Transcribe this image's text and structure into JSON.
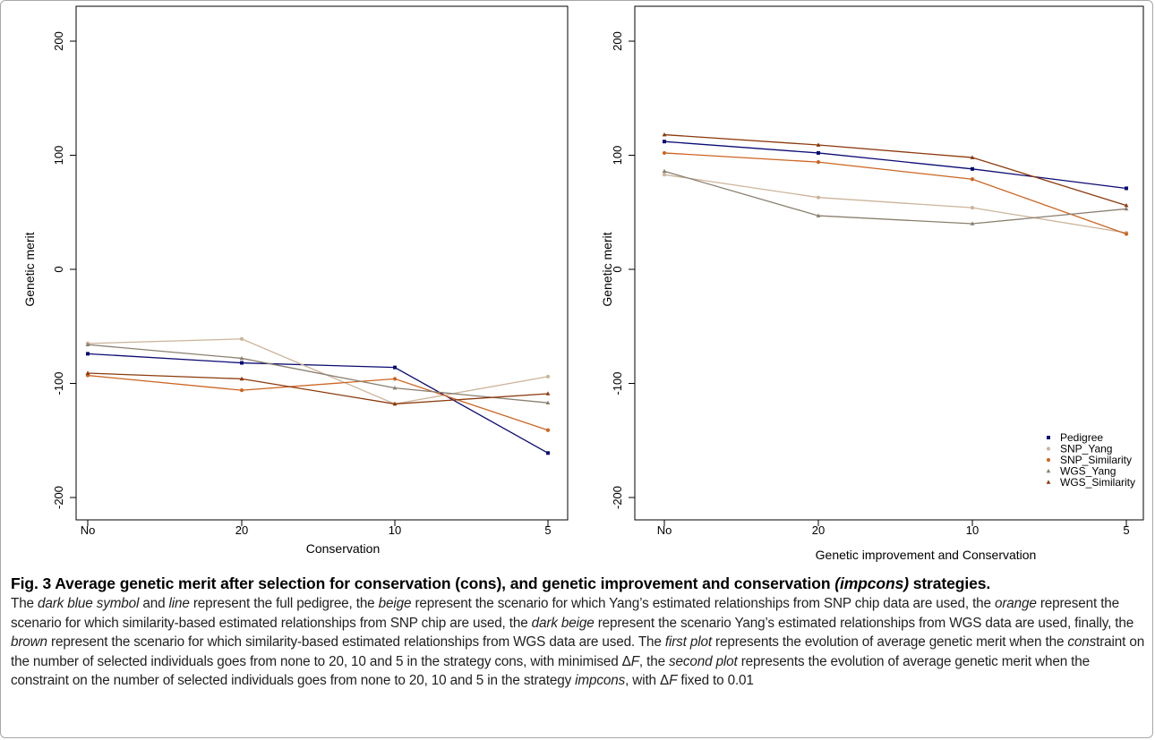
{
  "chart_data": [
    {
      "type": "line",
      "title": "",
      "xlabel": "Conservation",
      "ylabel": "Genetic merit",
      "categories": [
        "No",
        "20",
        "10",
        "5"
      ],
      "ylim": [
        -215,
        210
      ],
      "yticks": [
        -200,
        -100,
        0,
        100,
        200
      ],
      "legend": null,
      "series": [
        {
          "name": "Pedigree",
          "color": "#0b0b73",
          "marker": "square",
          "values": [
            -74,
            -82,
            -86,
            -161
          ]
        },
        {
          "name": "SNP_Yang",
          "color": "#ccb49b",
          "marker": "circle",
          "values": [
            -65,
            -61,
            -118,
            -94
          ]
        },
        {
          "name": "SNP_Similarity",
          "color": "#cc6522",
          "marker": "circle",
          "values": [
            -93,
            -106,
            -96,
            -141
          ]
        },
        {
          "name": "WGS_Yang",
          "color": "#8a8070",
          "marker": "triangle",
          "values": [
            -66,
            -78,
            -104,
            -117
          ]
        },
        {
          "name": "WGS_Similarity",
          "color": "#8b3a0c",
          "marker": "triangle",
          "values": [
            -91,
            -96,
            -118,
            -109
          ]
        }
      ]
    },
    {
      "type": "line",
      "title": "",
      "xlabel": "Genetic improvement and Conservation",
      "ylabel": "Genetic merit",
      "categories": [
        "No",
        "20",
        "10",
        "5"
      ],
      "ylim": [
        -215,
        210
      ],
      "yticks": [
        -200,
        -100,
        0,
        100,
        200
      ],
      "legend": "bottom-right",
      "series": [
        {
          "name": "Pedigree",
          "color": "#0b0b73",
          "marker": "square",
          "values": [
            112,
            102,
            88,
            71
          ]
        },
        {
          "name": "SNP_Yang",
          "color": "#ccb49b",
          "marker": "circle",
          "values": [
            83,
            63,
            54,
            32
          ]
        },
        {
          "name": "SNP_Similarity",
          "color": "#cc6522",
          "marker": "circle",
          "values": [
            102,
            94,
            79,
            31
          ]
        },
        {
          "name": "WGS_Yang",
          "color": "#8a8070",
          "marker": "triangle",
          "values": [
            86,
            47,
            40,
            53
          ]
        },
        {
          "name": "WGS_Similarity",
          "color": "#8b3a0c",
          "marker": "triangle",
          "values": [
            118,
            109,
            98,
            56
          ]
        }
      ]
    }
  ],
  "caption": {
    "title": "Fig. 3  Average genetic merit after selection for conservation (cons), and genetic improvement and conservation (impcons) strategies.",
    "body": "The dark blue symbol and line represent the full pedigree, the beige represent the scenario for which Yang’s estimated relationships from SNP chip data are used, the orange represent the scenario for which similarity-based estimated relationships from SNP chip are used, the dark beige represent the scenario Yang’s estimated relationships from WGS data are used, finally, the brown represent the scenario for which similarity-based estimated relationships from WGS data are used. The first plot represents the evolution of average genetic merit when the constraint on the number of selected individuals goes from none to 20, 10 and 5 in the strategy cons, with minimised ΔF, the second plot represents the evolution of average genetic merit when the constraint on the number of selected individuals goes from none to 20, 10 and 5 in the strategy impcons, with ΔF fixed to 0.01"
  }
}
